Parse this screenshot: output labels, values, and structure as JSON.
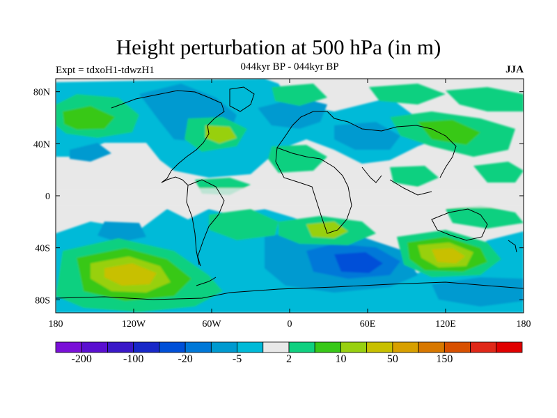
{
  "title": "Height perturbation at 500 hPa (in m)",
  "expt_label": "Expt = tdxoH1-tdwzH1",
  "subtitle": "044kyr BP - 044kyr BP",
  "season": "JJA",
  "map": {
    "lon_ticks": [
      "180",
      "120W",
      "60W",
      "0",
      "60E",
      "120E",
      "180"
    ],
    "lat_ticks": [
      "80N",
      "40N",
      "0",
      "40S",
      "80S"
    ],
    "background_color": "#e8e8e8"
  },
  "colorbar": {
    "colors": [
      "#7a10d8",
      "#5a0fd0",
      "#3a18c8",
      "#1828c8",
      "#0050d8",
      "#0078d8",
      "#009ad0",
      "#00bad8",
      "#e8e8e8",
      "#10d080",
      "#38c818",
      "#98d010",
      "#c8c000",
      "#d8a000",
      "#d87800",
      "#d85000",
      "#e02818",
      "#e00000"
    ],
    "labels": [
      {
        "text": "-200",
        "boundary": 1
      },
      {
        "text": "-100",
        "boundary": 3
      },
      {
        "text": "-20",
        "boundary": 5
      },
      {
        "text": "-5",
        "boundary": 7
      },
      {
        "text": "2",
        "boundary": 9
      },
      {
        "text": "10",
        "boundary": 11
      },
      {
        "text": "50",
        "boundary": 13
      },
      {
        "text": "150",
        "boundary": 15
      }
    ]
  }
}
